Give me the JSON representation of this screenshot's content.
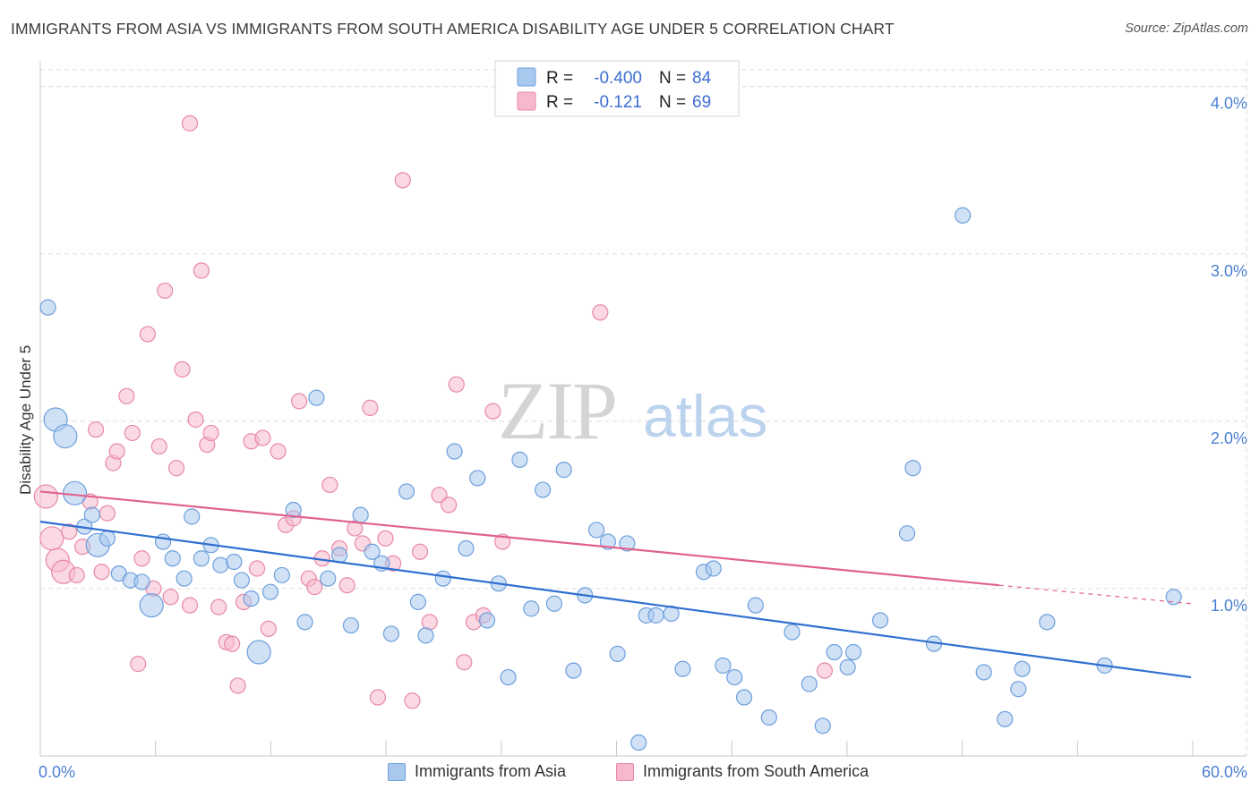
{
  "title": "IMMIGRANTS FROM ASIA VS IMMIGRANTS FROM SOUTH AMERICA DISABILITY AGE UNDER 5 CORRELATION CHART",
  "source": "Source: ZipAtlas.com",
  "watermark": {
    "zip": "ZIP",
    "atlas": "atlas"
  },
  "legend": {
    "rows": [
      {
        "r_label": "R =",
        "r_value": "-0.400",
        "n_label": "N =",
        "n_value": "84"
      },
      {
        "r_label": "R =",
        "r_value": "-0.121",
        "n_label": "N =",
        "n_value": "69"
      }
    ]
  },
  "bottom_legend": [
    "Immigrants from Asia",
    "Immigrants from South America"
  ],
  "colors": {
    "asia_fill": "#a9c8ee",
    "asia_stroke": "#6d9fdc",
    "asia_line": "#2f6fd0",
    "sa_fill": "#f6b9cc",
    "sa_stroke": "#e888a8",
    "sa_line": "#e0628e",
    "axis_text": "#4a7fd0",
    "grid": "#dcdcdc"
  },
  "chart_data": {
    "type": "scatter",
    "title": "IMMIGRANTS FROM ASIA VS IMMIGRANTS FROM SOUTH AMERICA DISABILITY AGE UNDER 5 CORRELATION CHART",
    "xlabel": "",
    "ylabel": "Disability Age Under 5",
    "xlim": [
      0,
      60
    ],
    "ylim": [
      0,
      4.1
    ],
    "x_tick_labels": [
      "0.0%",
      "60.0%"
    ],
    "y_ticks": [
      1.0,
      2.0,
      3.0,
      4.0
    ],
    "y_tick_labels": [
      "1.0%",
      "2.0%",
      "3.0%",
      "4.0%"
    ],
    "grid": true,
    "legend_position": "top-center",
    "series": [
      {
        "name": "Immigrants from Asia",
        "r": -0.4,
        "n": 84,
        "trend": {
          "x": [
            0,
            60
          ],
          "y": [
            1.4,
            0.47
          ]
        },
        "points": [
          [
            0.4,
            2.68
          ],
          [
            0.8,
            2.01
          ],
          [
            1.3,
            1.91
          ],
          [
            1.8,
            1.57
          ],
          [
            2.3,
            1.37
          ],
          [
            2.7,
            1.44
          ],
          [
            3.0,
            1.26
          ],
          [
            3.5,
            1.3
          ],
          [
            4.1,
            1.09
          ],
          [
            4.7,
            1.05
          ],
          [
            5.3,
            1.04
          ],
          [
            5.8,
            0.9
          ],
          [
            6.4,
            1.28
          ],
          [
            6.9,
            1.18
          ],
          [
            7.5,
            1.06
          ],
          [
            7.9,
            1.43
          ],
          [
            8.4,
            1.18
          ],
          [
            8.9,
            1.26
          ],
          [
            9.4,
            1.14
          ],
          [
            10.1,
            1.16
          ],
          [
            10.5,
            1.05
          ],
          [
            11.0,
            0.94
          ],
          [
            11.4,
            0.62
          ],
          [
            12.0,
            0.98
          ],
          [
            12.6,
            1.08
          ],
          [
            13.2,
            1.47
          ],
          [
            13.8,
            0.8
          ],
          [
            14.4,
            2.14
          ],
          [
            15.0,
            1.06
          ],
          [
            15.6,
            1.2
          ],
          [
            16.2,
            0.78
          ],
          [
            16.7,
            1.44
          ],
          [
            17.3,
            1.22
          ],
          [
            17.8,
            1.15
          ],
          [
            18.3,
            0.73
          ],
          [
            19.1,
            1.58
          ],
          [
            19.7,
            0.92
          ],
          [
            20.1,
            0.72
          ],
          [
            21.0,
            1.06
          ],
          [
            21.6,
            1.82
          ],
          [
            22.2,
            1.24
          ],
          [
            22.8,
            1.66
          ],
          [
            23.3,
            0.81
          ],
          [
            23.9,
            1.03
          ],
          [
            24.4,
            0.47
          ],
          [
            25.0,
            1.77
          ],
          [
            25.6,
            0.88
          ],
          [
            26.2,
            1.59
          ],
          [
            26.8,
            0.91
          ],
          [
            27.3,
            1.71
          ],
          [
            27.8,
            0.51
          ],
          [
            28.4,
            0.96
          ],
          [
            29.0,
            1.35
          ],
          [
            29.6,
            1.28
          ],
          [
            30.1,
            0.61
          ],
          [
            30.6,
            1.27
          ],
          [
            31.2,
            0.08
          ],
          [
            31.6,
            0.84
          ],
          [
            32.1,
            0.84
          ],
          [
            32.9,
            0.85
          ],
          [
            33.5,
            0.52
          ],
          [
            34.6,
            1.1
          ],
          [
            35.1,
            1.12
          ],
          [
            35.6,
            0.54
          ],
          [
            36.2,
            0.47
          ],
          [
            36.7,
            0.35
          ],
          [
            37.3,
            0.9
          ],
          [
            38.0,
            0.23
          ],
          [
            39.2,
            0.74
          ],
          [
            40.1,
            0.43
          ],
          [
            40.8,
            0.18
          ],
          [
            41.4,
            0.62
          ],
          [
            42.1,
            0.53
          ],
          [
            42.4,
            0.62
          ],
          [
            43.8,
            0.81
          ],
          [
            45.2,
            1.33
          ],
          [
            45.5,
            1.72
          ],
          [
            46.6,
            0.67
          ],
          [
            48.1,
            3.23
          ],
          [
            49.2,
            0.5
          ],
          [
            50.3,
            0.22
          ],
          [
            51.0,
            0.4
          ],
          [
            51.2,
            0.52
          ],
          [
            52.5,
            0.8
          ],
          [
            55.5,
            0.54
          ],
          [
            59.1,
            0.95
          ]
        ],
        "large_points": [
          [
            0.8,
            2.01
          ],
          [
            1.3,
            1.91
          ],
          [
            1.8,
            1.57
          ],
          [
            3.0,
            1.26
          ],
          [
            5.8,
            0.9
          ],
          [
            11.4,
            0.62
          ]
        ]
      },
      {
        "name": "Immigrants from South America",
        "r": -0.121,
        "n": 69,
        "trend": {
          "x": [
            0,
            50
          ],
          "y": [
            1.58,
            1.02
          ],
          "dashed_extension": {
            "x": [
              50,
              60
            ],
            "y": [
              1.02,
              0.91
            ]
          }
        },
        "points": [
          [
            0.3,
            1.55
          ],
          [
            0.6,
            1.3
          ],
          [
            0.9,
            1.17
          ],
          [
            1.2,
            1.1
          ],
          [
            1.5,
            1.34
          ],
          [
            1.9,
            1.08
          ],
          [
            2.2,
            1.25
          ],
          [
            2.6,
            1.52
          ],
          [
            2.9,
            1.95
          ],
          [
            3.2,
            1.1
          ],
          [
            3.5,
            1.45
          ],
          [
            3.8,
            1.75
          ],
          [
            4.0,
            1.82
          ],
          [
            4.5,
            2.15
          ],
          [
            4.8,
            1.93
          ],
          [
            5.1,
            0.55
          ],
          [
            5.3,
            1.18
          ],
          [
            5.6,
            2.52
          ],
          [
            5.9,
            1.0
          ],
          [
            6.2,
            1.85
          ],
          [
            6.5,
            2.78
          ],
          [
            6.8,
            0.95
          ],
          [
            7.1,
            1.72
          ],
          [
            7.4,
            2.31
          ],
          [
            7.8,
            0.9
          ],
          [
            7.8,
            3.78
          ],
          [
            8.1,
            2.01
          ],
          [
            8.4,
            2.9
          ],
          [
            8.7,
            1.86
          ],
          [
            8.9,
            1.93
          ],
          [
            9.3,
            0.89
          ],
          [
            9.7,
            0.68
          ],
          [
            10.0,
            0.67
          ],
          [
            10.3,
            0.42
          ],
          [
            10.6,
            0.92
          ],
          [
            11.0,
            1.88
          ],
          [
            11.3,
            1.12
          ],
          [
            11.6,
            1.9
          ],
          [
            11.9,
            0.76
          ],
          [
            12.4,
            1.82
          ],
          [
            12.8,
            1.38
          ],
          [
            13.2,
            1.42
          ],
          [
            13.5,
            2.12
          ],
          [
            14.0,
            1.06
          ],
          [
            14.3,
            1.01
          ],
          [
            14.7,
            1.18
          ],
          [
            15.1,
            1.62
          ],
          [
            15.6,
            1.24
          ],
          [
            16.0,
            1.02
          ],
          [
            16.4,
            1.36
          ],
          [
            16.8,
            1.27
          ],
          [
            17.2,
            2.08
          ],
          [
            17.6,
            0.35
          ],
          [
            18.0,
            1.3
          ],
          [
            18.4,
            1.15
          ],
          [
            18.9,
            3.44
          ],
          [
            19.4,
            0.33
          ],
          [
            19.8,
            1.22
          ],
          [
            20.3,
            0.8
          ],
          [
            20.8,
            1.56
          ],
          [
            21.3,
            1.5
          ],
          [
            21.7,
            2.22
          ],
          [
            22.1,
            0.56
          ],
          [
            22.6,
            0.8
          ],
          [
            23.1,
            0.84
          ],
          [
            23.6,
            2.06
          ],
          [
            24.1,
            1.28
          ],
          [
            29.2,
            2.65
          ],
          [
            40.9,
            0.51
          ]
        ],
        "large_points": [
          [
            0.3,
            1.55
          ],
          [
            0.6,
            1.3
          ],
          [
            0.9,
            1.17
          ],
          [
            1.2,
            1.1
          ]
        ]
      }
    ]
  }
}
